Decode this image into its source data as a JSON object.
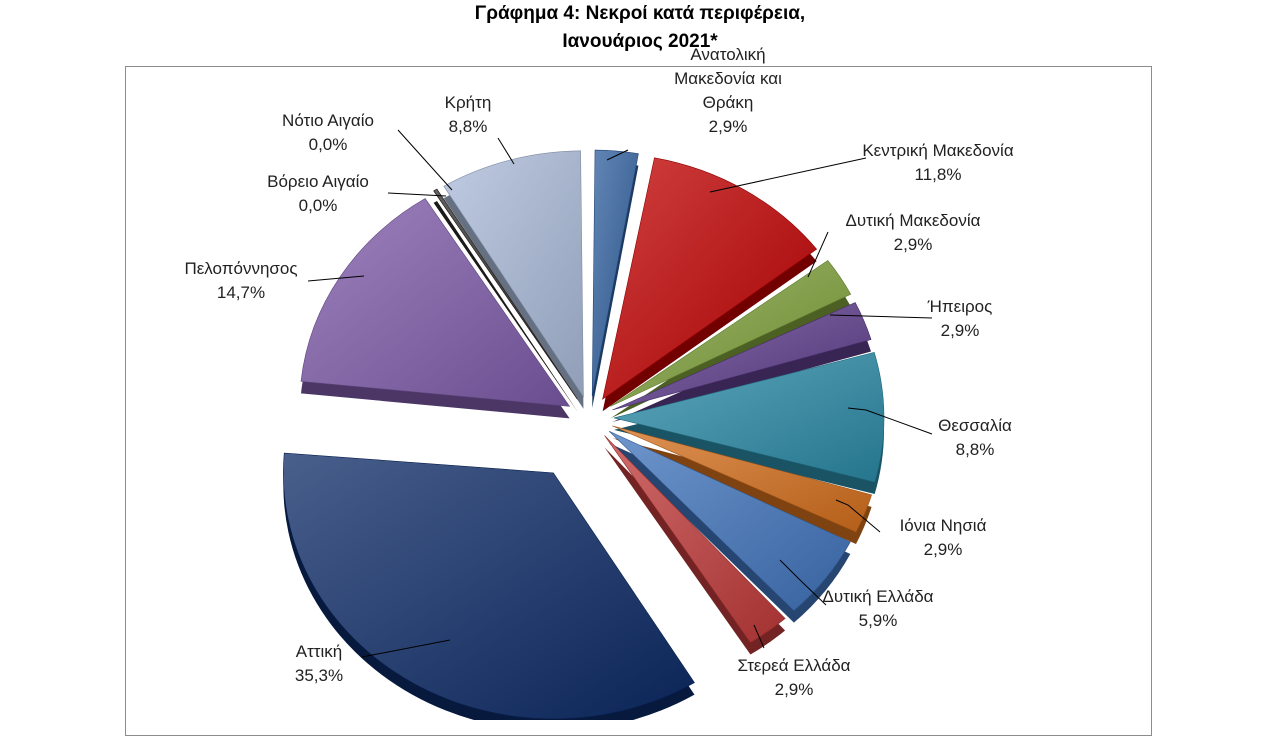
{
  "chart_data": {
    "type": "pie",
    "title": "Γράφημα 4: Νεκροί κατά περιφέρεια,",
    "subtitle": "Ιανουάριος 2021*",
    "slices": [
      {
        "name": "Ανατολική Μακεδονία και Θράκη",
        "name_lines": [
          "Ανατολική",
          "Μακεδονία και",
          "Θράκη"
        ],
        "value": 2.9,
        "label": "2,9%",
        "color": "#2f5f9e"
      },
      {
        "name": "Κεντρική Μακεδονία",
        "name_lines": [
          "Κεντρική Μακεδονία"
        ],
        "value": 11.8,
        "label": "11,8%",
        "color": "#c00000"
      },
      {
        "name": "Δυτική Μακεδονία",
        "name_lines": [
          "Δυτική Μακεδονία"
        ],
        "value": 2.9,
        "label": "2,9%",
        "color": "#7ea03a"
      },
      {
        "name": "Ήπειρος",
        "name_lines": [
          "Ήπειρος"
        ],
        "value": 2.9,
        "label": "2,9%",
        "color": "#5e3d8c"
      },
      {
        "name": "Θεσσαλία",
        "name_lines": [
          "Θεσσαλία"
        ],
        "value": 8.8,
        "label": "8,8%",
        "color": "#2a8aa6"
      },
      {
        "name": "Ιόνια Νησιά",
        "name_lines": [
          "Ιόνια Νησιά"
        ],
        "value": 2.9,
        "label": "2,9%",
        "color": "#d46f1c"
      },
      {
        "name": "Δυτική Ελλάδα",
        "name_lines": [
          "Δυτική Ελλάδα"
        ],
        "value": 5.9,
        "label": "5,9%",
        "color": "#3f73bb"
      },
      {
        "name": "Στερεά Ελλάδα",
        "name_lines": [
          "Στερεά Ελλάδα"
        ],
        "value": 2.9,
        "label": "2,9%",
        "color": "#c03a3a"
      },
      {
        "name": "Αττική",
        "name_lines": [
          "Αττική"
        ],
        "value": 35.3,
        "label": "35,3%",
        "color": "#0c2a66"
      },
      {
        "name": "Πελοπόννησος",
        "name_lines": [
          "Πελοπόννησος"
        ],
        "value": 14.7,
        "label": "14,7%",
        "color": "#7d5aa8"
      },
      {
        "name": "Βόρειο Αιγαίο",
        "name_lines": [
          "Βόρειο Αιγαίο"
        ],
        "value": 0.0,
        "label": "0,0%",
        "color": "#8b4a17"
      },
      {
        "name": "Νότιο Αιγαίο",
        "name_lines": [
          "Νότιο Αιγαίο"
        ],
        "value": 0.0,
        "label": "0,0%",
        "color": "#2b2b2b"
      },
      {
        "name": "Κρήτη",
        "name_lines": [
          "Κρήτη"
        ],
        "value": 8.8,
        "label": "8,8%",
        "color": "#a9bad8"
      }
    ]
  }
}
